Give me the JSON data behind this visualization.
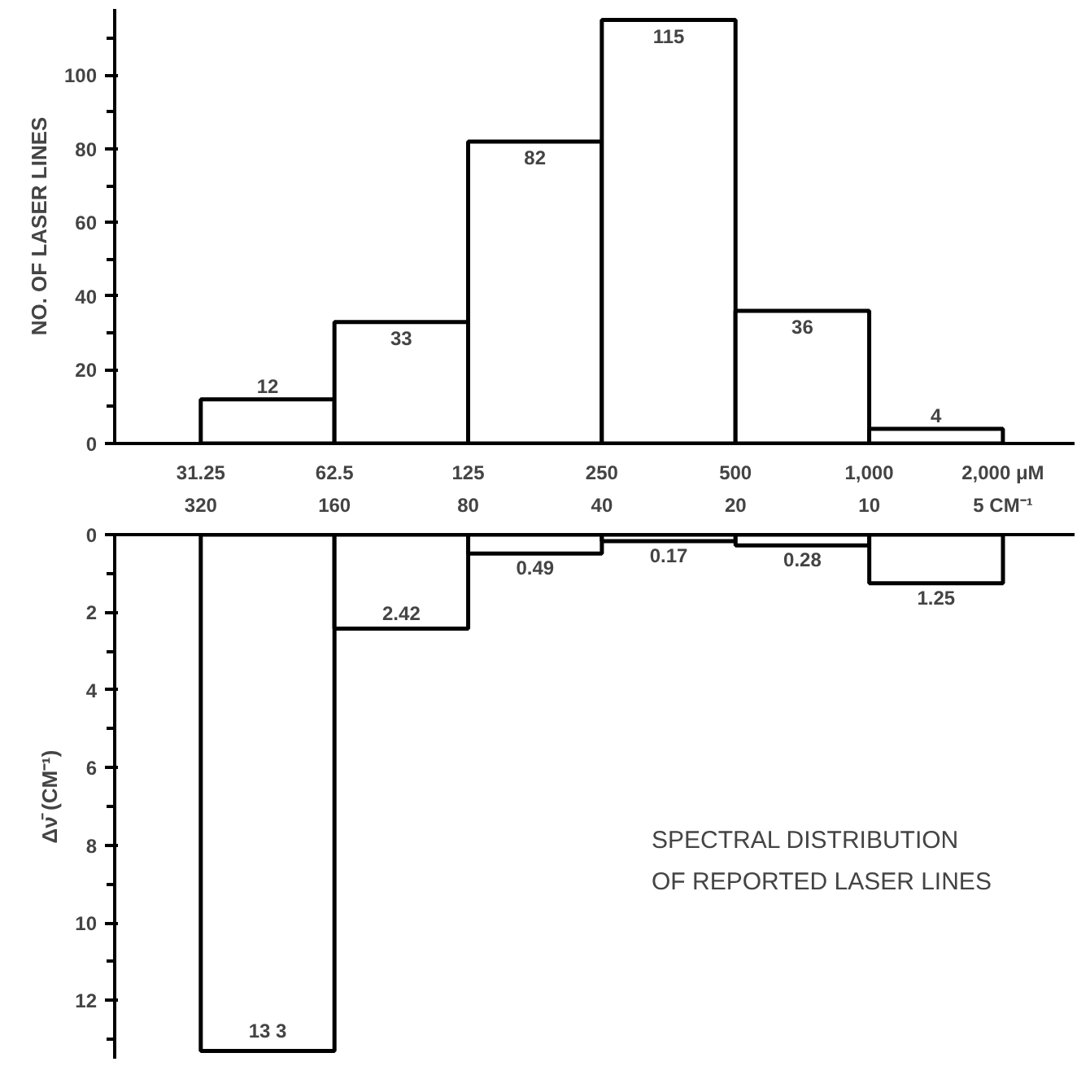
{
  "chart_data": [
    {
      "type": "histogram",
      "ylabel": "NO. OF LASER LINES",
      "bins": [
        31.25,
        62.5,
        125,
        250,
        500,
        1000,
        2000
      ],
      "values": [
        12,
        33,
        82,
        115,
        36,
        4
      ],
      "color": "#ffffff",
      "data_labels": true,
      "log": "x",
      "xlim": [
        20,
        2900
      ],
      "xticks": [
        31.25,
        62.5,
        125,
        250,
        500,
        {
          "value": 1000,
          "label": "1,000"
        },
        {
          "value": 2000,
          "label": "2,000 μM"
        }
      ],
      "ylim": [
        0,
        118
      ],
      "yticks": [
        0,
        20,
        40,
        60,
        80,
        100
      ],
      "grid": false
    },
    {
      "type": "histogram",
      "ylabel": "Δν̄ (CM⁻¹)",
      "bins": [
        320,
        160,
        80,
        40,
        20,
        10,
        5
      ],
      "values": [
        13.3,
        2.42,
        0.49,
        0.17,
        0.28,
        1.25
      ],
      "color": "#ffffff",
      "value_labels": [
        "13 3",
        "2.42",
        "0.49",
        "0.17",
        "0.28",
        "1.25"
      ],
      "log": "x",
      "xlim": [
        500,
        3.45
      ],
      "xticks": [
        320,
        160,
        80,
        40,
        20,
        10,
        {
          "value": 5,
          "label": "5 CM⁻¹"
        }
      ],
      "ylim": [
        13.5,
        0
      ],
      "yticks": [
        0,
        2,
        4,
        6,
        8,
        10,
        12
      ],
      "grid": false,
      "annotations": [
        "SPECTRAL DISTRIBUTION\nOF REPORTED LASER LINES"
      ]
    }
  ]
}
